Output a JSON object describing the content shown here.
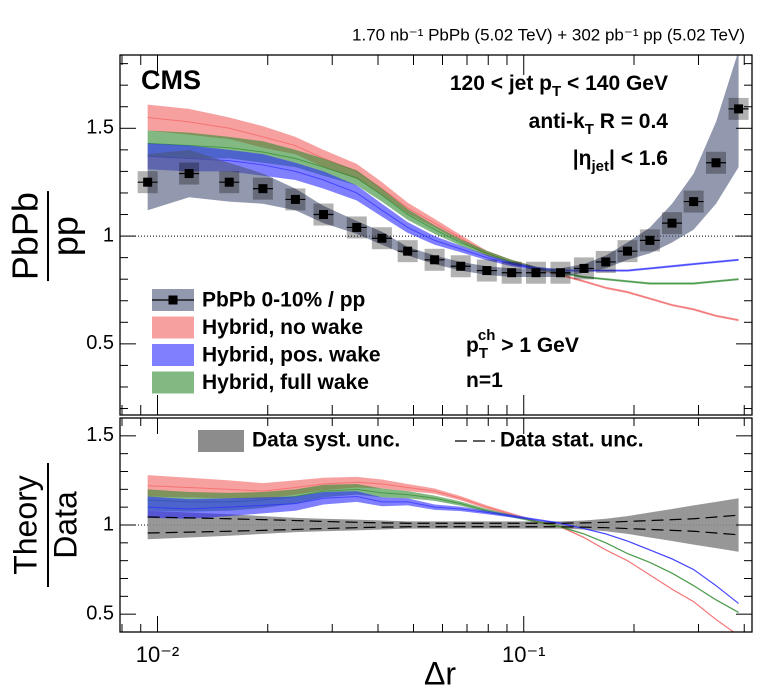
{
  "chart_data": [
    {
      "type": "line",
      "title": "CMS",
      "subtitle": "1.70 nb⁻¹ PbPb (5.02 TeV) + 302 pb⁻¹ pp (5.02 TeV)",
      "ylabel": [
        "PbPb",
        "pp"
      ],
      "annotations": [
        [
          {
            "text": "120 < jet p"
          },
          {
            "text": "T",
            "sub": true
          },
          {
            "text": " < 140 GeV"
          }
        ],
        [
          {
            "text": "anti-k"
          },
          {
            "text": "T",
            "sub": true
          },
          {
            "text": " R = 0.4"
          }
        ],
        [
          {
            "text": "|η"
          },
          {
            "text": "jet",
            "sub": true
          },
          {
            "text": "| < 1.6"
          }
        ],
        [
          {
            "text": "p"
          },
          {
            "text": "T",
            "sub": true
          },
          {
            "text": "ch",
            "sup": true
          },
          {
            "text": " > 1 GeV"
          }
        ],
        [
          {
            "text": "n=1"
          }
        ]
      ],
      "x": [
        0.0094,
        0.0122,
        0.0157,
        0.0194,
        0.0238,
        0.0284,
        0.035,
        0.041,
        0.0482,
        0.0571,
        0.0673,
        0.0793,
        0.0927,
        0.108,
        0.126,
        0.146,
        0.1675,
        0.192,
        0.221,
        0.254,
        0.291,
        0.335,
        0.386
      ],
      "xscale": "log",
      "xlim": [
        0.0079,
        0.42
      ],
      "xticks": [
        0.01,
        0.1
      ],
      "xminorticks": [
        0.008,
        0.009,
        0.02,
        0.03,
        0.04,
        0.05,
        0.06,
        0.07,
        0.08,
        0.09,
        0.2,
        0.3,
        0.4
      ],
      "ylim": [
        0.17,
        1.84
      ],
      "yticks": [
        0.5,
        1,
        1.5
      ],
      "yminorticks": [
        0.2,
        0.3,
        0.4,
        0.6,
        0.7,
        0.8,
        0.9,
        1.1,
        1.2,
        1.3,
        1.4,
        1.6,
        1.7,
        1.8
      ],
      "reference_line": 1,
      "series": [
        {
          "name": "PbPb 0-10% / pp",
          "color": "#4a5578",
          "values": [
            1.25,
            1.29,
            1.25,
            1.22,
            1.17,
            1.1,
            1.04,
            0.99,
            0.93,
            0.89,
            0.86,
            0.84,
            0.83,
            0.83,
            0.83,
            0.85,
            0.88,
            0.93,
            0.98,
            1.06,
            1.16,
            1.34,
            1.59
          ],
          "errors": [
            0.13,
            0.11,
            0.09,
            0.07,
            0.05,
            0.04,
            0.03,
            0.03,
            0.02,
            0.02,
            0.02,
            0.02,
            0.02,
            0.02,
            0.02,
            0.02,
            0.03,
            0.04,
            0.06,
            0.09,
            0.13,
            0.19,
            0.27
          ]
        },
        {
          "name": "Hybrid, no wake",
          "color": "#f26060",
          "values": [
            1.55,
            1.53,
            1.5,
            1.46,
            1.42,
            1.36,
            1.3,
            1.22,
            1.13,
            1.06,
            0.99,
            0.92,
            0.88,
            0.85,
            0.82,
            0.79,
            0.76,
            0.74,
            0.71,
            0.68,
            0.66,
            0.63,
            0.61
          ],
          "errors": [
            0.06,
            0.06,
            0.05,
            0.05,
            0.04,
            0.04,
            0.035,
            0.03,
            0.025,
            0.02,
            0.015,
            0.012,
            0.01,
            0.008,
            0.006,
            0.005,
            0.005,
            0.005,
            0.005,
            0.005,
            0.005,
            0.005,
            0.005
          ]
        },
        {
          "name": "Hybrid, pos. wake",
          "color": "#2b2bff",
          "values": [
            1.37,
            1.36,
            1.35,
            1.33,
            1.3,
            1.26,
            1.2,
            1.12,
            1.04,
            0.98,
            0.94,
            0.9,
            0.87,
            0.85,
            0.84,
            0.84,
            0.84,
            0.84,
            0.85,
            0.86,
            0.87,
            0.88,
            0.89
          ],
          "errors": [
            0.06,
            0.06,
            0.05,
            0.05,
            0.04,
            0.04,
            0.035,
            0.03,
            0.025,
            0.02,
            0.015,
            0.012,
            0.01,
            0.008,
            0.006,
            0.005,
            0.005,
            0.005,
            0.005,
            0.005,
            0.005,
            0.005,
            0.005
          ]
        },
        {
          "name": "Hybrid, full wake",
          "color": "#2e8b2e",
          "values": [
            1.43,
            1.42,
            1.41,
            1.39,
            1.36,
            1.32,
            1.27,
            1.19,
            1.1,
            1.03,
            0.97,
            0.92,
            0.88,
            0.85,
            0.83,
            0.81,
            0.8,
            0.79,
            0.78,
            0.78,
            0.78,
            0.79,
            0.8
          ],
          "errors": [
            0.06,
            0.06,
            0.05,
            0.05,
            0.04,
            0.04,
            0.035,
            0.03,
            0.025,
            0.02,
            0.015,
            0.012,
            0.01,
            0.008,
            0.006,
            0.005,
            0.005,
            0.005,
            0.005,
            0.005,
            0.005,
            0.005,
            0.005
          ]
        }
      ]
    },
    {
      "type": "line",
      "ylabel": [
        "Theory",
        "Data"
      ],
      "xlabel": "Δr",
      "x": [
        0.0094,
        0.0122,
        0.0157,
        0.0194,
        0.0238,
        0.0284,
        0.035,
        0.041,
        0.0482,
        0.0571,
        0.0673,
        0.0793,
        0.0927,
        0.108,
        0.126,
        0.146,
        0.1675,
        0.192,
        0.221,
        0.254,
        0.291,
        0.335,
        0.386
      ],
      "xscale": "log",
      "xlim": [
        0.0079,
        0.42
      ],
      "xticks": [
        {
          "value": 0.01,
          "label": "10⁻²"
        },
        {
          "value": 0.1,
          "label": "10⁻¹"
        }
      ],
      "xminorticks": [
        0.008,
        0.009,
        0.02,
        0.03,
        0.04,
        0.05,
        0.06,
        0.07,
        0.08,
        0.09,
        0.2,
        0.3,
        0.4
      ],
      "ylim": [
        0.4,
        1.6
      ],
      "yticks": [
        0.5,
        1,
        1.5
      ],
      "yminorticks": [
        0.6,
        0.7,
        0.8,
        0.9,
        1.1,
        1.2,
        1.3,
        1.4
      ],
      "reference_line": 1,
      "syst_band": {
        "name": "Data syst. unc.",
        "color": "#8c8c8c",
        "errors": [
          0.08,
          0.07,
          0.06,
          0.05,
          0.04,
          0.035,
          0.03,
          0.025,
          0.02,
          0.02,
          0.02,
          0.02,
          0.02,
          0.02,
          0.02,
          0.025,
          0.035,
          0.05,
          0.07,
          0.09,
          0.11,
          0.13,
          0.15
        ]
      },
      "stat_band": {
        "name": "Data stat. unc.",
        "color": "#000000",
        "errors": [
          0.045,
          0.04,
          0.035,
          0.03,
          0.025,
          0.02,
          0.015,
          0.012,
          0.01,
          0.01,
          0.01,
          0.01,
          0.01,
          0.01,
          0.01,
          0.012,
          0.015,
          0.02,
          0.025,
          0.03,
          0.035,
          0.045,
          0.055
        ]
      },
      "series": [
        {
          "name": "Hybrid, no wake",
          "color": "#f26060",
          "values": [
            1.22,
            1.21,
            1.2,
            1.19,
            1.21,
            1.23,
            1.24,
            1.23,
            1.21,
            1.19,
            1.15,
            1.1,
            1.06,
            1.02,
            0.99,
            0.93,
            0.86,
            0.8,
            0.72,
            0.64,
            0.57,
            0.47,
            0.38
          ],
          "errors": [
            0.06,
            0.055,
            0.05,
            0.045,
            0.04,
            0.035,
            0.03,
            0.025,
            0.02,
            0.015,
            0.012,
            0.01,
            0.008,
            0.006,
            0.005,
            0.004,
            0.004,
            0.004,
            0.004,
            0.004,
            0.004,
            0.004,
            0.004
          ]
        },
        {
          "name": "Hybrid, pos. wake",
          "color": "#2b2bff",
          "values": [
            1.1,
            1.09,
            1.1,
            1.11,
            1.12,
            1.15,
            1.16,
            1.13,
            1.13,
            1.1,
            1.09,
            1.07,
            1.05,
            1.03,
            1.01,
            0.98,
            0.95,
            0.91,
            0.86,
            0.81,
            0.75,
            0.66,
            0.56
          ],
          "errors": [
            0.06,
            0.055,
            0.05,
            0.045,
            0.04,
            0.035,
            0.03,
            0.025,
            0.02,
            0.015,
            0.012,
            0.01,
            0.008,
            0.006,
            0.005,
            0.004,
            0.004,
            0.004,
            0.004,
            0.004,
            0.004,
            0.004,
            0.004
          ]
        },
        {
          "name": "Hybrid, full wake",
          "color": "#2e8b2e",
          "values": [
            1.14,
            1.13,
            1.13,
            1.14,
            1.16,
            1.19,
            1.2,
            1.18,
            1.17,
            1.15,
            1.12,
            1.08,
            1.05,
            1.02,
            0.99,
            0.95,
            0.9,
            0.84,
            0.79,
            0.73,
            0.66,
            0.58,
            0.51
          ],
          "errors": [
            0.06,
            0.055,
            0.05,
            0.045,
            0.04,
            0.035,
            0.03,
            0.025,
            0.02,
            0.015,
            0.012,
            0.01,
            0.008,
            0.006,
            0.005,
            0.004,
            0.004,
            0.004,
            0.004,
            0.004,
            0.004,
            0.004,
            0.004
          ]
        }
      ]
    }
  ]
}
